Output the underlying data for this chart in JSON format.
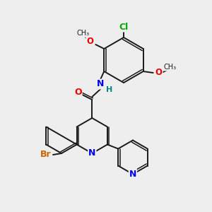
{
  "background_color": "#eeeeee",
  "bond_color": "#1a1a1a",
  "atom_colors": {
    "Br": "#cc6600",
    "N": "#0000ee",
    "O": "#ee0000",
    "Cl": "#00aa00",
    "H": "#008888",
    "C": "#1a1a1a"
  },
  "figsize": [
    3.0,
    3.0
  ],
  "dpi": 100,
  "lw": 1.4,
  "lw2": 1.1,
  "doff": 2.5
}
